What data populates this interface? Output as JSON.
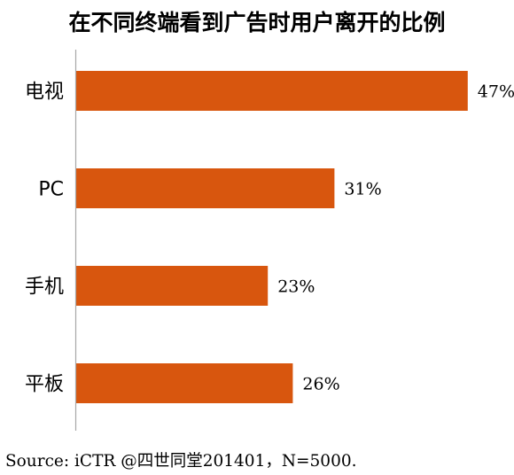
{
  "chart_data": {
    "type": "bar",
    "orientation": "horizontal",
    "title": "在不同终端看到广告时用户离开的比例",
    "categories": [
      "电视",
      "PC",
      "手机",
      "平板"
    ],
    "values": [
      47,
      31,
      23,
      26
    ],
    "value_labels": [
      "47%",
      "31%",
      "23%",
      "26%"
    ],
    "unit": "%",
    "xlim": [
      0,
      50
    ],
    "grid": false,
    "legend": "none",
    "bar_color": "#d8560e",
    "axis_color": "#a6a6a6"
  },
  "source": "Source: iCTR @四世同堂201401，N=5000."
}
